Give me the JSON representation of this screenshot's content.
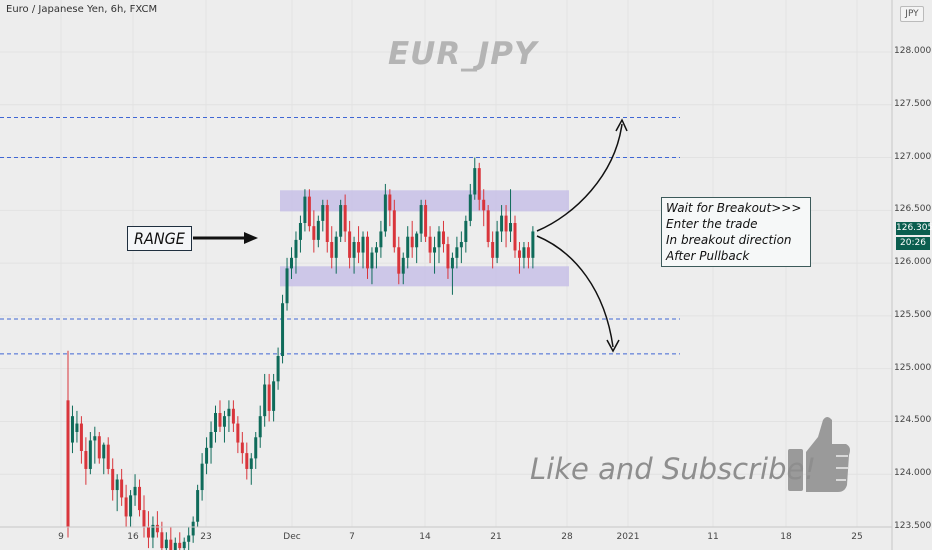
{
  "header": {
    "symbol_info": "Euro / Japanese Yen, 6h, FXCM",
    "currency_button": "JPY"
  },
  "watermark": "EUR_JPY",
  "annotations": {
    "range_label": "RANGE",
    "note_lines": [
      "Wait for Breakout>>>",
      "Enter the trade",
      "In breakout direction",
      "After Pullback"
    ],
    "cta": "Like and Subscribe!"
  },
  "price_tags": {
    "last_price": "126.305",
    "countdown": "20:26"
  },
  "colors": {
    "up": "#0f6b5a",
    "down": "#d9353b",
    "range_zone": "#c7c0e6",
    "level_line": "#3f66d4",
    "tag_bg": "#0b5e4f"
  },
  "icons": [
    "thumbs-up-icon",
    "arrow-right-icon",
    "curved-arrow-up-icon",
    "curved-arrow-down-icon"
  ],
  "chart_data": {
    "type": "candlestick",
    "title": "EUR_JPY",
    "ylim": [
      123.5,
      128.3
    ],
    "y_ticks": [
      "128.000",
      "127.500",
      "127.000",
      "126.500",
      "126.000",
      "125.500",
      "125.000",
      "124.500",
      "124.000",
      "123.500"
    ],
    "x_tick_labels": [
      "9",
      "16",
      "23",
      "Dec",
      "7",
      "14",
      "21",
      "28",
      "2021",
      "11",
      "18",
      "25"
    ],
    "resistance_levels": [
      127.38,
      127.0
    ],
    "support_levels": [
      125.47,
      125.14
    ],
    "range_zones": [
      [
        126.49,
        126.69
      ],
      [
        125.78,
        125.97
      ]
    ],
    "candles": [
      [
        125.17,
        123.4,
        124.7,
        123.5
      ],
      [
        124.65,
        124.2,
        124.3,
        124.55
      ],
      [
        124.6,
        124.3,
        124.4,
        124.48
      ],
      [
        124.55,
        124.1,
        124.48,
        124.22
      ],
      [
        124.35,
        123.9,
        124.22,
        124.05
      ],
      [
        124.4,
        124.0,
        124.05,
        124.32
      ],
      [
        124.45,
        124.1,
        124.32,
        124.36
      ],
      [
        124.4,
        124.1,
        124.36,
        124.15
      ],
      [
        124.3,
        124.0,
        124.15,
        124.28
      ],
      [
        124.35,
        124.0,
        124.28,
        124.05
      ],
      [
        124.15,
        123.75,
        124.05,
        123.85
      ],
      [
        124.0,
        123.65,
        123.85,
        123.95
      ],
      [
        124.05,
        123.7,
        123.95,
        123.78
      ],
      [
        123.9,
        123.5,
        123.78,
        123.6
      ],
      [
        123.85,
        123.5,
        123.6,
        123.8
      ],
      [
        124.0,
        123.7,
        123.8,
        123.88
      ],
      [
        123.95,
        123.6,
        123.88,
        123.66
      ],
      [
        123.8,
        123.4,
        123.66,
        123.5
      ],
      [
        123.65,
        123.3,
        123.5,
        123.4
      ],
      [
        123.6,
        123.3,
        123.4,
        123.52
      ],
      [
        123.65,
        123.4,
        123.52,
        123.45
      ],
      [
        123.55,
        123.2,
        123.45,
        123.3
      ],
      [
        123.45,
        123.2,
        123.3,
        123.38
      ],
      [
        123.5,
        123.2,
        123.38,
        123.25
      ],
      [
        123.4,
        123.2,
        123.25,
        123.35
      ],
      [
        123.45,
        123.2,
        123.35,
        123.3
      ],
      [
        123.4,
        123.2,
        123.3,
        123.36
      ],
      [
        123.5,
        123.25,
        123.36,
        123.42
      ],
      [
        123.6,
        123.35,
        123.42,
        123.55
      ],
      [
        123.9,
        123.5,
        123.55,
        123.85
      ],
      [
        124.2,
        123.75,
        123.85,
        124.1
      ],
      [
        124.35,
        124.0,
        124.1,
        124.25
      ],
      [
        124.5,
        124.1,
        124.25,
        124.4
      ],
      [
        124.65,
        124.3,
        124.4,
        124.58
      ],
      [
        124.7,
        124.4,
        124.58,
        124.45
      ],
      [
        124.6,
        124.3,
        124.45,
        124.55
      ],
      [
        124.7,
        124.4,
        124.55,
        124.62
      ],
      [
        124.7,
        124.4,
        124.62,
        124.48
      ],
      [
        124.55,
        124.2,
        124.48,
        124.3
      ],
      [
        124.4,
        124.1,
        124.3,
        124.2
      ],
      [
        124.3,
        123.95,
        124.2,
        124.05
      ],
      [
        124.2,
        123.9,
        124.05,
        124.15
      ],
      [
        124.4,
        124.05,
        124.15,
        124.35
      ],
      [
        124.65,
        124.25,
        124.35,
        124.55
      ],
      [
        124.95,
        124.45,
        124.55,
        124.85
      ],
      [
        124.95,
        124.5,
        124.85,
        124.6
      ],
      [
        124.95,
        124.5,
        124.6,
        124.88
      ],
      [
        125.2,
        124.8,
        124.88,
        125.12
      ],
      [
        125.7,
        125.05,
        125.12,
        125.62
      ],
      [
        126.05,
        125.55,
        125.62,
        125.95
      ],
      [
        126.15,
        125.85,
        125.95,
        126.05
      ],
      [
        126.3,
        125.9,
        126.05,
        126.22
      ],
      [
        126.45,
        126.1,
        126.22,
        126.38
      ],
      [
        126.7,
        126.3,
        126.38,
        126.63
      ],
      [
        126.7,
        126.3,
        126.63,
        126.35
      ],
      [
        126.5,
        126.1,
        126.35,
        126.22
      ],
      [
        126.45,
        126.15,
        126.22,
        126.4
      ],
      [
        126.6,
        126.3,
        126.4,
        126.55
      ],
      [
        126.6,
        126.1,
        126.55,
        126.2
      ],
      [
        126.35,
        125.95,
        126.2,
        126.05
      ],
      [
        126.3,
        125.9,
        126.05,
        126.25
      ],
      [
        126.6,
        126.2,
        126.25,
        126.55
      ],
      [
        126.65,
        126.2,
        126.55,
        126.3
      ],
      [
        126.4,
        125.95,
        126.3,
        126.05
      ],
      [
        126.25,
        125.9,
        126.05,
        126.2
      ],
      [
        126.35,
        126.0,
        126.2,
        126.1
      ],
      [
        126.3,
        125.95,
        126.1,
        126.25
      ],
      [
        126.3,
        125.85,
        126.25,
        125.95
      ],
      [
        126.15,
        125.8,
        125.95,
        126.1
      ],
      [
        126.2,
        125.95,
        126.1,
        126.15
      ],
      [
        126.4,
        126.05,
        126.15,
        126.3
      ],
      [
        126.75,
        126.25,
        126.3,
        126.65
      ],
      [
        126.7,
        126.35,
        126.65,
        126.5
      ],
      [
        126.6,
        126.1,
        126.5,
        126.15
      ],
      [
        126.25,
        125.8,
        126.15,
        125.9
      ],
      [
        126.1,
        125.8,
        125.9,
        126.05
      ],
      [
        126.35,
        125.95,
        126.05,
        126.25
      ],
      [
        126.4,
        126.05,
        126.25,
        126.15
      ],
      [
        126.3,
        126.0,
        126.15,
        126.28
      ],
      [
        126.6,
        126.2,
        126.28,
        126.55
      ],
      [
        126.6,
        126.2,
        126.55,
        126.25
      ],
      [
        126.35,
        126.0,
        126.25,
        126.1
      ],
      [
        126.25,
        125.9,
        126.1,
        126.15
      ],
      [
        126.35,
        126.0,
        126.15,
        126.3
      ],
      [
        126.4,
        126.1,
        126.3,
        126.18
      ],
      [
        126.25,
        125.85,
        126.18,
        125.95
      ],
      [
        126.1,
        125.7,
        125.95,
        126.05
      ],
      [
        126.25,
        125.95,
        126.05,
        126.15
      ],
      [
        126.3,
        126.0,
        126.15,
        126.2
      ],
      [
        126.45,
        126.1,
        126.2,
        126.4
      ],
      [
        126.75,
        126.35,
        126.4,
        126.65
      ],
      [
        127.0,
        126.6,
        126.65,
        126.9
      ],
      [
        126.95,
        126.5,
        126.9,
        126.6
      ],
      [
        126.7,
        126.35,
        126.6,
        126.5
      ],
      [
        126.55,
        126.15,
        126.5,
        126.2
      ],
      [
        126.3,
        125.95,
        126.2,
        126.05
      ],
      [
        126.4,
        126.0,
        126.05,
        126.3
      ],
      [
        126.55,
        126.2,
        126.3,
        126.45
      ],
      [
        126.55,
        126.15,
        126.45,
        126.3
      ],
      [
        126.7,
        126.2,
        126.3,
        126.38
      ],
      [
        126.45,
        126.05,
        126.38,
        126.12
      ],
      [
        126.2,
        125.9,
        126.12,
        126.05
      ],
      [
        126.2,
        125.95,
        126.05,
        126.15
      ],
      [
        126.2,
        125.95,
        126.15,
        126.05
      ],
      [
        126.35,
        125.95,
        126.05,
        126.3
      ]
    ]
  }
}
